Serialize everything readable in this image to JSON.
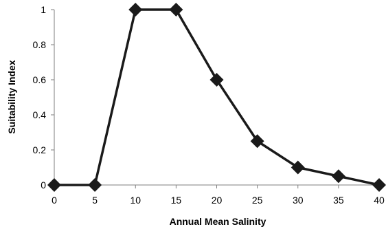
{
  "chart_data": {
    "type": "line",
    "title": "",
    "xlabel": "Annual Mean Salinity",
    "ylabel": "Suitability Index",
    "xlim": [
      0,
      40
    ],
    "ylim": [
      0,
      1
    ],
    "x_ticks": [
      0,
      5,
      10,
      15,
      20,
      25,
      30,
      35,
      40
    ],
    "y_ticks": [
      0,
      0.2,
      0.4,
      0.6,
      0.8,
      1
    ],
    "x_tick_labels": [
      "0",
      "5",
      "10",
      "15",
      "20",
      "25",
      "30",
      "35",
      "40"
    ],
    "y_tick_labels": [
      "0",
      "0.2",
      "0.4",
      "0.6",
      "0.8",
      "1"
    ],
    "grid": false,
    "legend": "none",
    "marker": "diamond",
    "line_color": "#1a1a1a",
    "series": [
      {
        "x": [
          0,
          5,
          10,
          15,
          20,
          25,
          30,
          35,
          40
        ],
        "y": [
          0,
          0,
          1,
          1,
          0.6,
          0.25,
          0.1,
          0.05,
          0
        ]
      }
    ]
  }
}
